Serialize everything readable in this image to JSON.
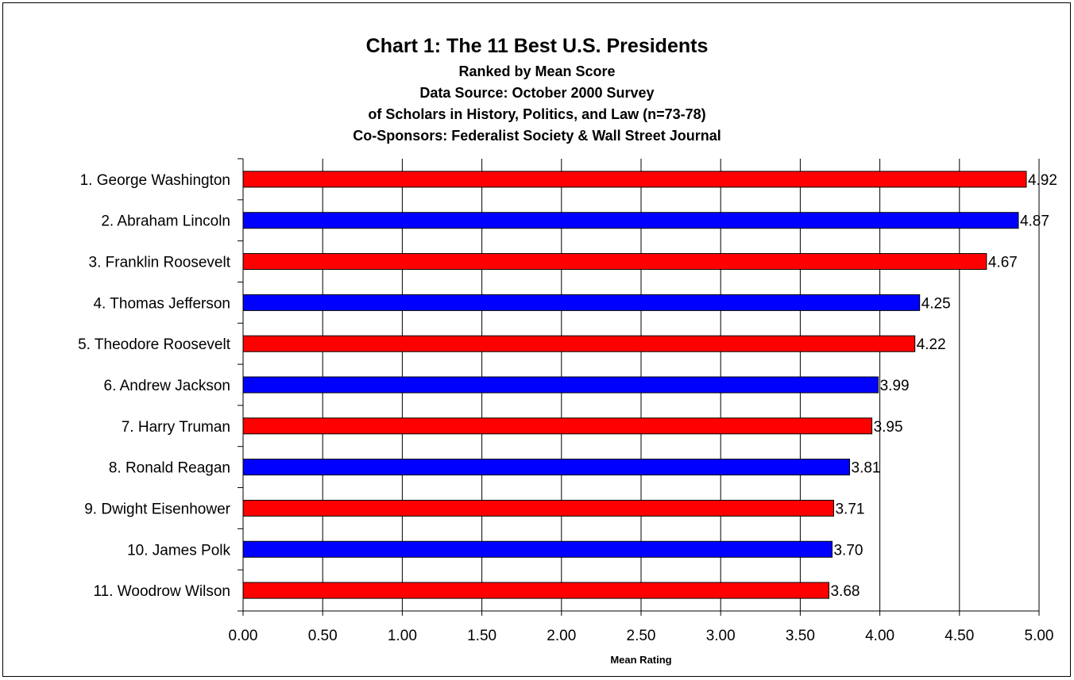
{
  "chart_data": {
    "type": "bar",
    "orientation": "horizontal",
    "title": "Chart 1: The 11 Best U.S. Presidents",
    "subtitle_lines": [
      "Ranked by Mean Score",
      "Data Source: October 2000 Survey",
      "of Scholars in History, Politics, and Law (n=73-78)",
      "Co-Sponsors: Federalist Society & Wall Street Journal"
    ],
    "xlabel": "Mean Rating",
    "ylabel": "",
    "xlim": [
      0,
      5
    ],
    "x_ticks": [
      "0.00",
      "0.50",
      "1.00",
      "1.50",
      "2.00",
      "2.50",
      "3.00",
      "3.50",
      "4.00",
      "4.50",
      "5.00"
    ],
    "grid": "vertical",
    "categories": [
      "1. George Washington",
      "2. Abraham Lincoln",
      "3. Franklin Roosevelt",
      "4. Thomas Jefferson",
      "5. Theodore Roosevelt",
      "6. Andrew Jackson",
      "7. Harry Truman",
      "8. Ronald Reagan",
      "9. Dwight Eisenhower",
      "10. James Polk",
      "11. Woodrow Wilson"
    ],
    "values": [
      4.92,
      4.87,
      4.67,
      4.25,
      4.22,
      3.99,
      3.95,
      3.81,
      3.71,
      3.7,
      3.68
    ],
    "value_labels": [
      "4.92",
      "4.87",
      "4.67",
      "4.25",
      "4.22",
      "3.99",
      "3.95",
      "3.81",
      "3.71",
      "3.70",
      "3.68"
    ],
    "bar_colors": [
      "#ff0000",
      "#0000ff"
    ],
    "colors": {
      "red": "#ff0000",
      "blue": "#0000ff",
      "grid": "#000000"
    }
  }
}
